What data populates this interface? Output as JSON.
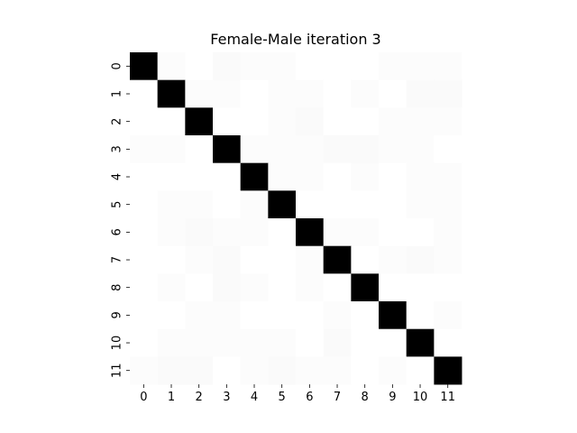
{
  "chart_data": {
    "type": "heatmap",
    "title": "Female-Male iteration 3",
    "xlabel": "",
    "ylabel": "",
    "x_categories": [
      "0",
      "1",
      "2",
      "3",
      "4",
      "5",
      "6",
      "7",
      "8",
      "9",
      "10",
      "11"
    ],
    "y_categories": [
      "0",
      "1",
      "2",
      "3",
      "4",
      "5",
      "6",
      "7",
      "8",
      "9",
      "10",
      "11"
    ],
    "colormap": "white-to-black (greys)",
    "colorbar": false,
    "grid": false,
    "value_range": [
      0,
      1
    ],
    "values": [
      [
        1.0,
        0.01,
        0.0,
        0.02,
        0.01,
        0.01,
        0.0,
        0.0,
        0.0,
        0.01,
        0.01,
        0.01
      ],
      [
        0.0,
        1.0,
        0.01,
        0.01,
        0.0,
        0.01,
        0.01,
        0.0,
        0.01,
        0.0,
        0.02,
        0.02
      ],
      [
        0.0,
        0.0,
        1.0,
        0.0,
        0.0,
        0.01,
        0.02,
        0.0,
        0.0,
        0.01,
        0.01,
        0.01
      ],
      [
        0.01,
        0.01,
        0.0,
        1.0,
        0.01,
        0.01,
        0.01,
        0.02,
        0.02,
        0.01,
        0.01,
        0.0
      ],
      [
        0.0,
        0.0,
        0.0,
        0.0,
        1.0,
        0.01,
        0.01,
        0.0,
        0.01,
        0.0,
        0.01,
        0.01
      ],
      [
        0.0,
        0.01,
        0.01,
        0.0,
        0.01,
        1.0,
        0.0,
        0.0,
        0.0,
        0.0,
        0.01,
        0.01
      ],
      [
        0.0,
        0.01,
        0.02,
        0.01,
        0.01,
        0.0,
        1.0,
        0.01,
        0.01,
        0.0,
        0.0,
        0.01
      ],
      [
        0.0,
        0.0,
        0.01,
        0.02,
        0.0,
        0.0,
        0.01,
        1.0,
        0.0,
        0.01,
        0.02,
        0.01
      ],
      [
        0.0,
        0.01,
        0.0,
        0.02,
        0.01,
        0.0,
        0.01,
        0.0,
        1.0,
        0.0,
        0.0,
        0.0
      ],
      [
        0.0,
        0.0,
        0.01,
        0.01,
        0.0,
        0.0,
        0.0,
        0.01,
        0.0,
        1.0,
        0.0,
        0.01
      ],
      [
        0.0,
        0.01,
        0.01,
        0.01,
        0.01,
        0.01,
        0.0,
        0.02,
        0.0,
        0.0,
        1.0,
        0.0
      ],
      [
        0.01,
        0.02,
        0.02,
        0.0,
        0.01,
        0.02,
        0.01,
        0.01,
        0.0,
        0.01,
        0.0,
        1.0
      ]
    ]
  }
}
